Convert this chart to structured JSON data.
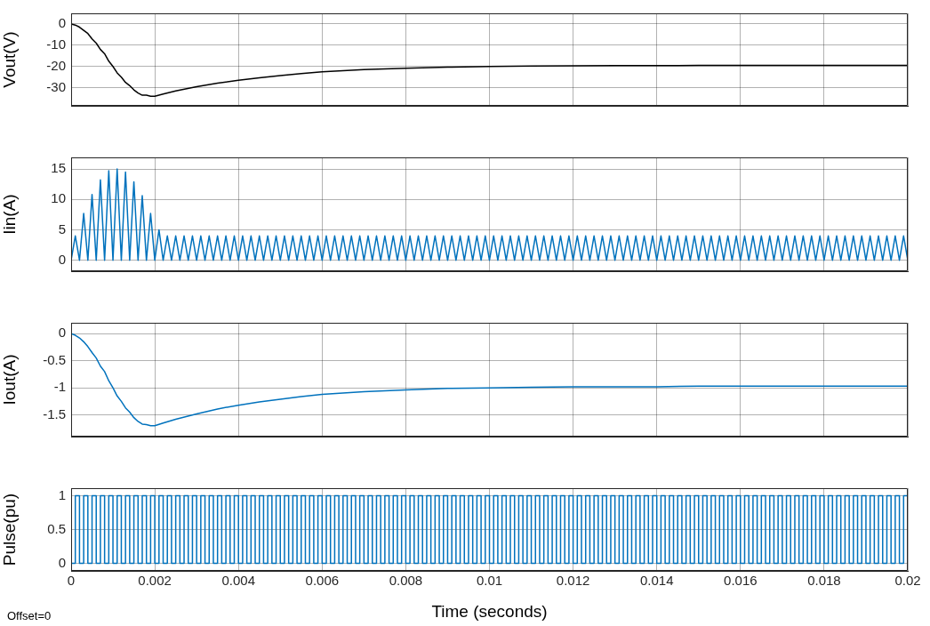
{
  "chart_data": [
    {
      "type": "line",
      "ylabel": "Vout(V)",
      "color": "#000000",
      "grid": true,
      "tick_labels": "y",
      "xlim": [
        0,
        0.02
      ],
      "xticks": [
        0,
        0.002,
        0.004,
        0.006,
        0.008,
        0.01,
        0.012,
        0.014,
        0.016,
        0.018,
        0.02
      ],
      "ylim": [
        -38.5,
        5
      ],
      "yticks": [
        -30,
        -20,
        -10,
        0
      ],
      "x": [
        0,
        0.0001,
        0.0002,
        0.0003,
        0.0004,
        0.0005,
        0.0006,
        0.0007,
        0.0008,
        0.0009,
        0.001,
        0.0011,
        0.0012,
        0.0013,
        0.0014,
        0.0015,
        0.0016,
        0.0017,
        0.0018,
        0.0019,
        0.002,
        0.0022,
        0.0025,
        0.003,
        0.0035,
        0.004,
        0.0045,
        0.005,
        0.0055,
        0.006,
        0.007,
        0.008,
        0.009,
        0.01,
        0.011,
        0.012,
        0.013,
        0.014,
        0.015,
        0.016,
        0.017,
        0.018,
        0.019,
        0.02
      ],
      "values": [
        0,
        -0.5,
        -1.5,
        -3,
        -4.5,
        -7,
        -9,
        -12,
        -14,
        -17.5,
        -20,
        -23,
        -25,
        -27.5,
        -29,
        -31,
        -32.5,
        -33.5,
        -33.5,
        -34,
        -34,
        -33,
        -31.5,
        -29.5,
        -27.8,
        -26.5,
        -25.3,
        -24.3,
        -23.3,
        -22.5,
        -21.5,
        -20.8,
        -20.3,
        -20,
        -19.8,
        -19.7,
        -19.6,
        -19.6,
        -19.5,
        -19.5,
        -19.5,
        -19.5,
        -19.5,
        -19.5
      ]
    },
    {
      "type": "line",
      "ylabel": "Iin(A)",
      "color": "#0072bd",
      "grid": true,
      "tick_labels": "y",
      "xlim": [
        0,
        0.02
      ],
      "xticks": [
        0,
        0.002,
        0.004,
        0.006,
        0.008,
        0.01,
        0.012,
        0.014,
        0.016,
        0.018,
        0.02
      ],
      "ylim": [
        -1.8,
        16.9
      ],
      "yticks": [
        0,
        5,
        10,
        15
      ],
      "x": [
        0,
        0.0001,
        0.0002,
        0.0003,
        0.0004,
        0.0005,
        0.0006,
        0.0007,
        0.0008,
        0.0009,
        0.001,
        0.0011,
        0.0012,
        0.0013,
        0.0014,
        0.0015,
        0.0016,
        0.0017,
        0.0018,
        0.0019,
        0.002,
        0.0021,
        0.0022,
        0.0023,
        0.0024,
        0.0025,
        0.0026,
        0.0027,
        0.0028,
        0.0029,
        0.003,
        0.0031,
        0.0032,
        0.0033,
        0.0034,
        0.0035,
        0.0036,
        0.0037,
        0.0038,
        0.0039,
        0.004,
        0.0041,
        0.0042,
        0.0043,
        0.0044,
        0.0045,
        0.0046,
        0.0047,
        0.0048,
        0.0049,
        0.005,
        0.0051,
        0.0052,
        0.0053,
        0.0054,
        0.0055,
        0.0056,
        0.0057,
        0.0058,
        0.0059,
        0.006,
        0.0061,
        0.0062,
        0.0063,
        0.0064,
        0.0065,
        0.0066,
        0.0067,
        0.0068,
        0.0069,
        0.007,
        0.0071,
        0.0072,
        0.0073,
        0.0074,
        0.0075,
        0.0076,
        0.0077,
        0.0078,
        0.0079,
        0.008,
        0.0081,
        0.0082,
        0.0083,
        0.0084,
        0.0085,
        0.0086,
        0.0087,
        0.0088,
        0.0089,
        0.009,
        0.0091,
        0.0092,
        0.0093,
        0.0094,
        0.0095,
        0.0096,
        0.0097,
        0.0098,
        0.0099,
        0.01,
        0.0101,
        0.0102,
        0.0103,
        0.0104,
        0.0105,
        0.0106,
        0.0107,
        0.0108,
        0.0109,
        0.011,
        0.0111,
        0.0112,
        0.0113,
        0.0114,
        0.0115,
        0.0116,
        0.0117,
        0.0118,
        0.0119,
        0.012,
        0.0121,
        0.0122,
        0.0123,
        0.0124,
        0.0125,
        0.0126,
        0.0127,
        0.0128,
        0.0129,
        0.013,
        0.0131,
        0.0132,
        0.0133,
        0.0134,
        0.0135,
        0.0136,
        0.0137,
        0.0138,
        0.0139,
        0.014,
        0.0141,
        0.0142,
        0.0143,
        0.0144,
        0.0145,
        0.0146,
        0.0147,
        0.0148,
        0.0149,
        0.015,
        0.0151,
        0.0152,
        0.0153,
        0.0154,
        0.0155,
        0.0156,
        0.0157,
        0.0158,
        0.0159,
        0.016,
        0.0161,
        0.0162,
        0.0163,
        0.0164,
        0.0165,
        0.0166,
        0.0167,
        0.0168,
        0.0169,
        0.017,
        0.0171,
        0.0172,
        0.0173,
        0.0174,
        0.0175,
        0.0176,
        0.0177,
        0.0178,
        0.0179,
        0.018,
        0.0181,
        0.0182,
        0.0183,
        0.0184,
        0.0185,
        0.0186,
        0.0187,
        0.0188,
        0.0189,
        0.019,
        0.0191,
        0.0192,
        0.0193,
        0.0194,
        0.0195,
        0.0196,
        0.0197,
        0.0198,
        0.0199,
        0.02
      ],
      "values": [
        0,
        4,
        0,
        7.7,
        0,
        10.8,
        0,
        13.2,
        0,
        14.7,
        0,
        15,
        0,
        14.5,
        0,
        12.9,
        0,
        10.6,
        0,
        7.7,
        0,
        5,
        0,
        4,
        0,
        4,
        0,
        4,
        0,
        4,
        0,
        4,
        0,
        4,
        0,
        4,
        0,
        4,
        0,
        4,
        0,
        4,
        0,
        4,
        0,
        4,
        0,
        4,
        0,
        4,
        0,
        4,
        0,
        4,
        0,
        4,
        0,
        4,
        0,
        4,
        0,
        4,
        0,
        4,
        0,
        4,
        0,
        4,
        0,
        4,
        0,
        4,
        0,
        4,
        0,
        4,
        0,
        4,
        0,
        4,
        0,
        4,
        0,
        4,
        0,
        4,
        0,
        4,
        0,
        4,
        0,
        4,
        0,
        4,
        0,
        4,
        0,
        4,
        0,
        4,
        0,
        4,
        0,
        4,
        0,
        4,
        0,
        4,
        0,
        4,
        0,
        4,
        0,
        4,
        0,
        4,
        0,
        4,
        0,
        4,
        0,
        4,
        0,
        4,
        0,
        4,
        0,
        4,
        0,
        4,
        0,
        4,
        0,
        4,
        0,
        4,
        0,
        4,
        0,
        4,
        0,
        4,
        0,
        4,
        0,
        4,
        0,
        4,
        0,
        4,
        0,
        4,
        0,
        4,
        0,
        4,
        0,
        4,
        0,
        4,
        0,
        4,
        0,
        4,
        0,
        4,
        0,
        4,
        0,
        4,
        0,
        4,
        0,
        4,
        0,
        4,
        0,
        4,
        0,
        4,
        0,
        4,
        0,
        4,
        0,
        4,
        0,
        4,
        0,
        4,
        0,
        4,
        0,
        4,
        0,
        4,
        0,
        4,
        0,
        4,
        0
      ]
    },
    {
      "type": "line",
      "ylabel": "Iout(A)",
      "color": "#0072bd",
      "grid": true,
      "tick_labels": "y",
      "xlim": [
        0,
        0.02
      ],
      "xticks": [
        0,
        0.002,
        0.004,
        0.006,
        0.008,
        0.01,
        0.012,
        0.014,
        0.016,
        0.018,
        0.02
      ],
      "ylim": [
        -1.9,
        0.2
      ],
      "yticks": [
        -1.5,
        -1,
        -0.5,
        0
      ],
      "x": [
        0,
        0.0001,
        0.0002,
        0.0003,
        0.0004,
        0.0005,
        0.0006,
        0.0007,
        0.0008,
        0.0009,
        0.001,
        0.0011,
        0.0012,
        0.0013,
        0.0014,
        0.0015,
        0.0016,
        0.0017,
        0.0018,
        0.0019,
        0.002,
        0.0022,
        0.0025,
        0.003,
        0.0035,
        0.004,
        0.0045,
        0.005,
        0.0055,
        0.006,
        0.007,
        0.008,
        0.009,
        0.01,
        0.011,
        0.012,
        0.013,
        0.014,
        0.015,
        0.016,
        0.017,
        0.018,
        0.019,
        0.02
      ],
      "values": [
        0,
        -0.03,
        -0.08,
        -0.15,
        -0.24,
        -0.35,
        -0.45,
        -0.6,
        -0.7,
        -0.87,
        -1,
        -1.15,
        -1.25,
        -1.37,
        -1.45,
        -1.55,
        -1.62,
        -1.67,
        -1.68,
        -1.7,
        -1.7,
        -1.65,
        -1.58,
        -1.48,
        -1.39,
        -1.32,
        -1.26,
        -1.21,
        -1.16,
        -1.12,
        -1.07,
        -1.04,
        -1.01,
        -1,
        -0.99,
        -0.98,
        -0.98,
        -0.98,
        -0.97,
        -0.97,
        -0.97,
        -0.97,
        -0.97,
        -0.97
      ]
    },
    {
      "type": "step",
      "ylabel": "Pulse(pu)",
      "xlabel": "Time (seconds)",
      "color": "#0072bd",
      "grid": true,
      "xlim": [
        0,
        0.02
      ],
      "xticks": [
        0,
        0.002,
        0.004,
        0.006,
        0.008,
        0.01,
        0.012,
        0.014,
        0.016,
        0.018,
        0.02
      ],
      "ylim": [
        -0.11,
        1.11
      ],
      "yticks": [
        0,
        0.5,
        1
      ],
      "annotations": [
        "Offset=0"
      ],
      "x": [
        0,
        0.0001,
        0.0002,
        0.0003,
        0.0004,
        0.0005,
        0.0006,
        0.0007,
        0.0008,
        0.0009,
        0.001,
        0.0011,
        0.0012,
        0.0013,
        0.0014,
        0.0015,
        0.0016,
        0.0017,
        0.0018,
        0.0019,
        0.002,
        0.0021,
        0.0022,
        0.0023,
        0.0024,
        0.0025,
        0.0026,
        0.0027,
        0.0028,
        0.0029,
        0.003,
        0.0031,
        0.0032,
        0.0033,
        0.0034,
        0.0035,
        0.0036,
        0.0037,
        0.0038,
        0.0039,
        0.004,
        0.0041,
        0.0042,
        0.0043,
        0.0044,
        0.0045,
        0.0046,
        0.0047,
        0.0048,
        0.0049,
        0.005,
        0.0051,
        0.0052,
        0.0053,
        0.0054,
        0.0055,
        0.0056,
        0.0057,
        0.0058,
        0.0059,
        0.006,
        0.0061,
        0.0062,
        0.0063,
        0.0064,
        0.0065,
        0.0066,
        0.0067,
        0.0068,
        0.0069,
        0.007,
        0.0071,
        0.0072,
        0.0073,
        0.0074,
        0.0075,
        0.0076,
        0.0077,
        0.0078,
        0.0079,
        0.008,
        0.0081,
        0.0082,
        0.0083,
        0.0084,
        0.0085,
        0.0086,
        0.0087,
        0.0088,
        0.0089,
        0.009,
        0.0091,
        0.0092,
        0.0093,
        0.0094,
        0.0095,
        0.0096,
        0.0097,
        0.0098,
        0.0099,
        0.01,
        0.0101,
        0.0102,
        0.0103,
        0.0104,
        0.0105,
        0.0106,
        0.0107,
        0.0108,
        0.0109,
        0.011,
        0.0111,
        0.0112,
        0.0113,
        0.0114,
        0.0115,
        0.0116,
        0.0117,
        0.0118,
        0.0119,
        0.012,
        0.0121,
        0.0122,
        0.0123,
        0.0124,
        0.0125,
        0.0126,
        0.0127,
        0.0128,
        0.0129,
        0.013,
        0.0131,
        0.0132,
        0.0133,
        0.0134,
        0.0135,
        0.0136,
        0.0137,
        0.0138,
        0.0139,
        0.014,
        0.0141,
        0.0142,
        0.0143,
        0.0144,
        0.0145,
        0.0146,
        0.0147,
        0.0148,
        0.0149,
        0.015,
        0.0151,
        0.0152,
        0.0153,
        0.0154,
        0.0155,
        0.0156,
        0.0157,
        0.0158,
        0.0159,
        0.016,
        0.0161,
        0.0162,
        0.0163,
        0.0164,
        0.0165,
        0.0166,
        0.0167,
        0.0168,
        0.0169,
        0.017,
        0.0171,
        0.0172,
        0.0173,
        0.0174,
        0.0175,
        0.0176,
        0.0177,
        0.0178,
        0.0179,
        0.018,
        0.0181,
        0.0182,
        0.0183,
        0.0184,
        0.0185,
        0.0186,
        0.0187,
        0.0188,
        0.0189,
        0.019,
        0.0191,
        0.0192,
        0.0193,
        0.0194,
        0.0195,
        0.0196,
        0.0197,
        0.0198,
        0.0199,
        0.02
      ],
      "values": [
        1,
        0,
        1,
        0,
        1,
        0,
        1,
        0,
        1,
        0,
        1,
        0,
        1,
        0,
        1,
        0,
        1,
        0,
        1,
        0,
        1,
        0,
        1,
        0,
        1,
        0,
        1,
        0,
        1,
        0,
        1,
        0,
        1,
        0,
        1,
        0,
        1,
        0,
        1,
        0,
        1,
        0,
        1,
        0,
        1,
        0,
        1,
        0,
        1,
        0,
        1,
        0,
        1,
        0,
        1,
        0,
        1,
        0,
        1,
        0,
        1,
        0,
        1,
        0,
        1,
        0,
        1,
        0,
        1,
        0,
        1,
        0,
        1,
        0,
        1,
        0,
        1,
        0,
        1,
        0,
        1,
        0,
        1,
        0,
        1,
        0,
        1,
        0,
        1,
        0,
        1,
        0,
        1,
        0,
        1,
        0,
        1,
        0,
        1,
        0,
        1,
        0,
        1,
        0,
        1,
        0,
        1,
        0,
        1,
        0,
        1,
        0,
        1,
        0,
        1,
        0,
        1,
        0,
        1,
        0,
        1,
        0,
        1,
        0,
        1,
        0,
        1,
        0,
        1,
        0,
        1,
        0,
        1,
        0,
        1,
        0,
        1,
        0,
        1,
        0,
        1,
        0,
        1,
        0,
        1,
        0,
        1,
        0,
        1,
        0,
        1,
        0,
        1,
        0,
        1,
        0,
        1,
        0,
        1,
        0,
        1,
        0,
        1,
        0,
        1,
        0,
        1,
        0,
        1,
        0,
        1,
        0,
        1,
        0,
        1,
        0,
        1,
        0,
        1,
        0,
        1,
        0,
        1,
        0,
        1,
        0,
        1,
        0,
        1,
        0,
        1,
        0,
        1,
        0,
        1,
        0,
        1,
        0,
        1,
        0,
        1
      ]
    }
  ]
}
